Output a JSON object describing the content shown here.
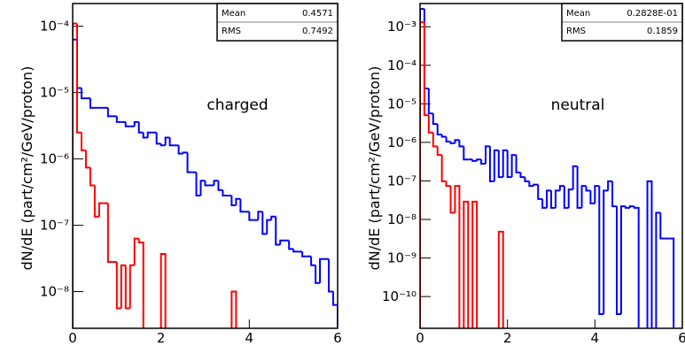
{
  "chart_data": [
    {
      "type": "histogram",
      "annotation": "charged",
      "y_label": "dN/dE (part/cm²/GeV/proton)",
      "log_y": true,
      "xlim": [
        0,
        6
      ],
      "xticks": [
        0,
        2,
        4,
        6
      ],
      "ylim": [
        2.8e-09,
        0.00022
      ],
      "yticks": [
        {
          "value": 0.0001,
          "label": "10⁻⁴"
        },
        {
          "value": 1e-05,
          "label": "10⁻⁵"
        },
        {
          "value": 1e-06,
          "label": "10⁻⁶"
        },
        {
          "value": 1e-07,
          "label": "10⁻⁷"
        },
        {
          "value": 1e-08,
          "label": "10⁻⁸"
        }
      ],
      "stats": {
        "labels": [
          "Mean",
          "RMS"
        ],
        "values": [
          0.4571,
          0.7492
        ]
      },
      "bins": [
        0,
        0.1,
        0.2,
        0.3,
        0.4,
        0.5,
        0.6,
        0.7,
        0.8,
        0.9,
        1,
        1.1,
        1.2,
        1.3,
        1.4,
        1.5,
        1.6,
        1.7,
        1.8,
        1.9,
        2,
        2.1,
        2.2,
        2.3,
        2.4,
        2.5,
        2.6,
        2.7,
        2.8,
        2.9,
        3,
        3.1,
        3.2,
        3.3,
        3.4,
        3.5,
        3.6,
        3.7,
        3.8,
        3.9,
        4,
        4.1,
        4.2,
        4.3,
        4.4,
        4.5,
        4.6,
        4.7,
        4.8,
        4.9,
        5,
        5.1,
        5.2,
        5.3,
        5.4,
        5.5,
        5.6,
        5.7,
        5.8,
        5.9,
        6
      ],
      "series": [
        {
          "color": "#0000ff",
          "values": [
            6.3e-05,
            1.17e-05,
            8.2e-06,
            8.2e-06,
            5.9e-06,
            5.9e-06,
            5.9e-06,
            5.9e-06,
            4.4e-06,
            4.4e-06,
            3.6e-06,
            3.6e-06,
            3.1e-06,
            3.1e-06,
            3.6e-06,
            2.5e-06,
            2.1e-06,
            2.5e-06,
            2.5e-06,
            1.7e-06,
            1.6e-06,
            2.1e-06,
            1.6e-06,
            1.6e-06,
            1.2e-06,
            1.25e-06,
            6.3e-07,
            6.3e-07,
            2.8e-07,
            4.7e-07,
            4e-07,
            4e-07,
            4.7e-07,
            3.4e-07,
            2.8e-07,
            2.8e-07,
            2e-07,
            2.5e-07,
            1.6e-07,
            1.6e-07,
            1.2e-07,
            1.2e-07,
            1.6e-07,
            7.4e-08,
            1.2e-07,
            1.35e-07,
            5.1e-08,
            5.9e-08,
            5.9e-08,
            4.4e-08,
            4e-08,
            4e-08,
            3.4e-08,
            3.4e-08,
            2.5e-08,
            1.35e-08,
            3.1e-08,
            3.1e-08,
            1e-08,
            6.3e-09
          ]
        },
        {
          "color": "#ff0000",
          "values": [
            0.00011,
            2.5e-06,
            1.35e-06,
            7.4e-07,
            4e-07,
            1.35e-07,
            2.15e-07,
            2.15e-07,
            2.8e-08,
            2.8e-08,
            5.6e-09,
            2.5e-08,
            5.6e-09,
            2.5e-08,
            6.3e-08,
            5.5e-08,
            null,
            null,
            null,
            null,
            3.7e-08,
            null,
            null,
            null,
            null,
            null,
            null,
            null,
            null,
            null,
            null,
            null,
            null,
            null,
            null,
            null,
            1e-08,
            null,
            null,
            null,
            null,
            null,
            null,
            null,
            null,
            null,
            null,
            null,
            null,
            null,
            null,
            null,
            null,
            null,
            null,
            null,
            null,
            null,
            null,
            null
          ]
        }
      ]
    },
    {
      "type": "histogram",
      "annotation": "neutral",
      "y_label": "dN/dE (part/cm²/GeV/proton)",
      "log_y": true,
      "xlim": [
        0,
        6
      ],
      "xticks": [
        0,
        2,
        4,
        6
      ],
      "ylim": [
        1.5e-11,
        0.004
      ],
      "yticks": [
        {
          "value": 0.001,
          "label": "10⁻³"
        },
        {
          "value": 0.0001,
          "label": "10⁻⁴"
        },
        {
          "value": 1e-05,
          "label": "10⁻⁵"
        },
        {
          "value": 1e-06,
          "label": "10⁻⁶"
        },
        {
          "value": 1e-07,
          "label": "10⁻⁷"
        },
        {
          "value": 1e-08,
          "label": "10⁻⁸"
        },
        {
          "value": 1e-09,
          "label": "10⁻⁹"
        },
        {
          "value": 1e-10,
          "label": "10⁻¹⁰"
        }
      ],
      "stats": {
        "labels": [
          "Mean",
          "RMS"
        ],
        "values": [
          0.02828,
          0.1859
        ],
        "value_labels": [
          "0.2828E-01",
          "0.1859"
        ]
      },
      "bins": [
        0,
        0.1,
        0.2,
        0.3,
        0.4,
        0.5,
        0.6,
        0.7,
        0.8,
        0.9,
        1,
        1.1,
        1.2,
        1.3,
        1.4,
        1.5,
        1.6,
        1.7,
        1.8,
        1.9,
        2,
        2.1,
        2.2,
        2.3,
        2.4,
        2.5,
        2.6,
        2.7,
        2.8,
        2.9,
        3,
        3.1,
        3.2,
        3.3,
        3.4,
        3.5,
        3.6,
        3.7,
        3.8,
        3.9,
        4,
        4.1,
        4.2,
        4.3,
        4.4,
        4.5,
        4.6,
        4.7,
        4.8,
        4.9,
        5,
        5.1,
        5.2,
        5.3,
        5.4,
        5.5,
        5.6,
        5.7,
        5.8,
        5.9,
        6
      ],
      "series": [
        {
          "color": "#0000ff",
          "values": [
            0.0029,
            2.5e-05,
            5.6e-06,
            3e-06,
            1.6e-06,
            1.4e-06,
            1.05e-06,
            9.5e-07,
            1.15e-06,
            7.9e-07,
            3.6e-07,
            3.6e-07,
            3.3e-07,
            3.6e-07,
            2.8e-07,
            7.9e-07,
            9.8e-08,
            6.2e-07,
            1.26e-07,
            6.2e-07,
            1.26e-07,
            4.7e-07,
            1.66e-07,
            1.26e-07,
            9.8e-08,
            7.4e-08,
            8e-08,
            3.4e-08,
            2e-08,
            5.6e-08,
            2e-08,
            5.6e-08,
            7.4e-08,
            2e-08,
            6e-08,
            2.4e-07,
            2e-08,
            7.4e-08,
            5.6e-08,
            2.6e-08,
            7.4e-08,
            3.5e-11,
            5.6e-08,
            9.8e-08,
            2.2e-08,
            3.5e-11,
            2.2e-08,
            2e-08,
            2.2e-08,
            2e-08,
            null,
            null,
            9.8e-08,
            null,
            1.5e-08,
            3.2e-09,
            3.2e-09,
            3.2e-09,
            null,
            null
          ]
        },
        {
          "color": "#ff0000",
          "values": [
            0.0013,
            5.1e-06,
            1.8e-06,
            7.9e-07,
            4.7e-07,
            9.8e-08,
            7.4e-08,
            1.5e-08,
            7.4e-08,
            null,
            2.9e-08,
            null,
            2.9e-08,
            null,
            null,
            null,
            null,
            null,
            4.8e-09,
            null,
            null,
            null,
            null,
            null,
            null,
            null,
            null,
            null,
            null,
            null,
            null,
            null,
            null,
            null,
            null,
            null,
            null,
            null,
            null,
            null,
            null,
            null,
            null,
            null,
            null,
            null,
            null,
            null,
            null,
            null,
            null,
            null,
            null,
            null,
            null,
            null,
            null,
            null,
            null,
            null
          ]
        }
      ]
    }
  ]
}
